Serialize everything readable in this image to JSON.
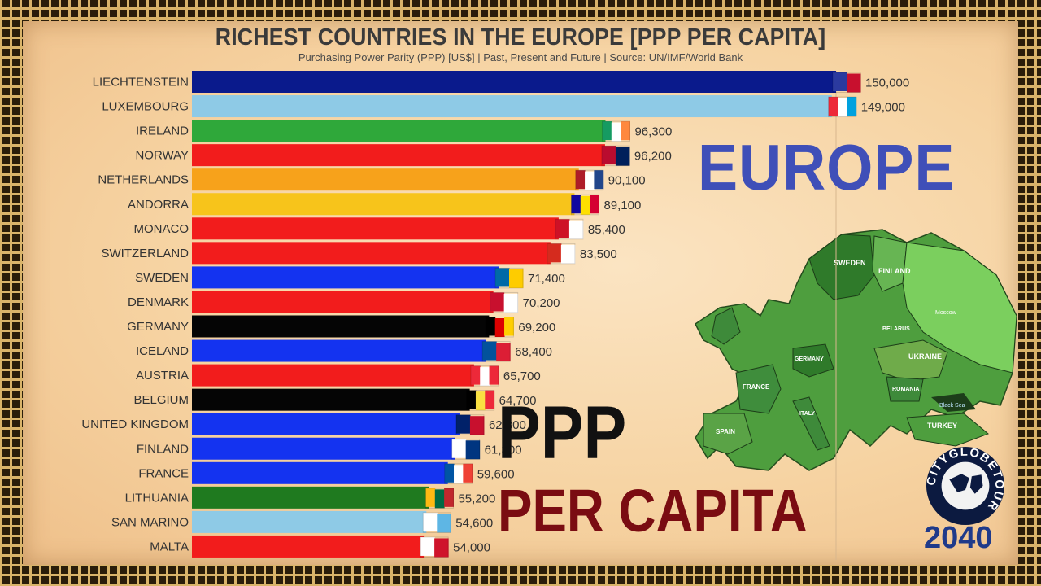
{
  "header": {
    "title": "RICHEST COUNTRIES IN THE EUROPE [PPP PER CAPITA]",
    "subtitle": "Purchasing Power Parity (PPP) [US$] | Past, Present and Future | Source: UN/IMF/World Bank"
  },
  "overlay": {
    "europe": "EUROPE",
    "ppp": "PPP",
    "per_capita": "PER CAPITA",
    "logo_text": "CITYGLOBETOUR",
    "year": "2040"
  },
  "map_labels": [
    "SWEDEN",
    "FINLAND",
    "UKRAINE",
    "ROMANIA",
    "TURKEY",
    "SPAIN",
    "FRANCE",
    "GERMANY",
    "ITALY",
    "BELARUS",
    "Moscow",
    "Black Sea"
  ],
  "chart_data": {
    "type": "bar",
    "orientation": "horizontal",
    "title": "RICHEST COUNTRIES IN THE EUROPE [PPP PER CAPITA]",
    "xlim": [
      0,
      150000
    ],
    "categories": [
      "LIECHTENSTEIN",
      "LUXEMBOURG",
      "IRELAND",
      "NORWAY",
      "NETHERLANDS",
      "ANDORRA",
      "MONACO",
      "SWITZERLAND",
      "SWEDEN",
      "DENMARK",
      "GERMANY",
      "ICELAND",
      "AUSTRIA",
      "BELGIUM",
      "UNITED KINGDOM",
      "FINLAND",
      "FRANCE",
      "LITHUANIA",
      "SAN MARINO",
      "MALTA"
    ],
    "values": [
      150000,
      149000,
      96300,
      96200,
      90100,
      89100,
      85400,
      83500,
      71400,
      70200,
      69200,
      68400,
      65700,
      64700,
      62300,
      61300,
      59600,
      55200,
      54600,
      54000
    ],
    "labels": [
      "150,000",
      "149,000",
      "96,300",
      "96,200",
      "90,100",
      "89,100",
      "85,400",
      "83,500",
      "71,400",
      "70,200",
      "69,200",
      "68,400",
      "65,700",
      "64,700",
      "62,300",
      "61,300",
      "59,600",
      "55,200",
      "54,600",
      "54,000"
    ],
    "colors": [
      "#0a1a8c",
      "#8ecae6",
      "#2fa83a",
      "#f21c1c",
      "#f7a21b",
      "#f7c41b",
      "#f21c1c",
      "#f21c1c",
      "#1433f0",
      "#f21c1c",
      "#050505",
      "#1433f0",
      "#f21c1c",
      "#050505",
      "#1433f0",
      "#1433f0",
      "#1433f0",
      "#1f7a1f",
      "#8ecae6",
      "#f21c1c"
    ],
    "flags": [
      [
        "#2b3a9f",
        "#c8102e"
      ],
      [
        "#ed2939",
        "#ffffff",
        "#00a1de"
      ],
      [
        "#169b62",
        "#ffffff",
        "#ff883e"
      ],
      [
        "#ba0c2f",
        "#00205b"
      ],
      [
        "#ae1c28",
        "#ffffff",
        "#21468b"
      ],
      [
        "#10069f",
        "#fedf00",
        "#d50032"
      ],
      [
        "#ce1126",
        "#ffffff"
      ],
      [
        "#d52b1e",
        "#ffffff"
      ],
      [
        "#006aa7",
        "#fecc00"
      ],
      [
        "#c8102e",
        "#ffffff"
      ],
      [
        "#000000",
        "#dd0000",
        "#ffce00"
      ],
      [
        "#02529c",
        "#dc1e35"
      ],
      [
        "#ed2939",
        "#ffffff",
        "#ed2939"
      ],
      [
        "#000000",
        "#fae042",
        "#ed2939"
      ],
      [
        "#012169",
        "#c8102e"
      ],
      [
        "#ffffff",
        "#003580"
      ],
      [
        "#0055a4",
        "#ffffff",
        "#ef4135"
      ],
      [
        "#fdb913",
        "#006a44",
        "#c1272d"
      ],
      [
        "#ffffff",
        "#5eb6e4"
      ],
      [
        "#ffffff",
        "#cf142b"
      ]
    ]
  }
}
